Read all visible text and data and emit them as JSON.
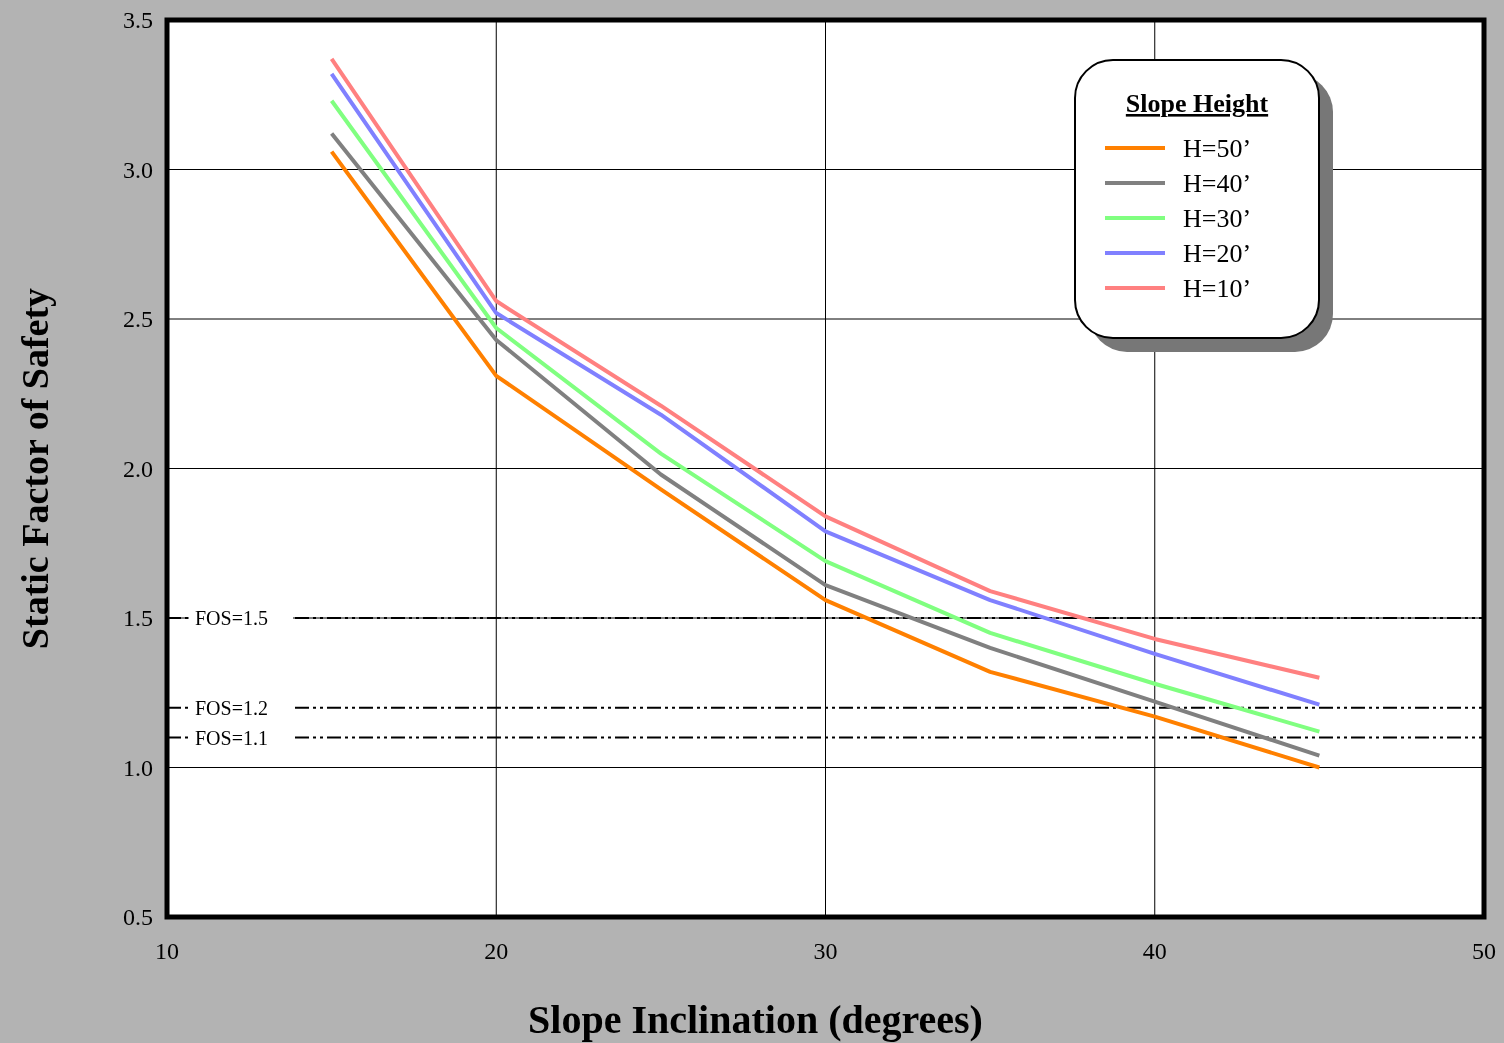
{
  "chart_data": {
    "type": "line",
    "xlabel": "Slope Inclination (degrees)",
    "ylabel": "Static Factor of Safety",
    "legend_title": "Slope Height",
    "x": [
      15,
      20,
      25,
      30,
      35,
      40,
      45
    ],
    "xlim": [
      10,
      50
    ],
    "xticks": [
      10,
      20,
      30,
      40,
      50
    ],
    "ylim": [
      0.5,
      3.5
    ],
    "yticks": [
      {
        "value": 0.5,
        "label": "0.5"
      },
      {
        "value": 1,
        "label": "1.0"
      },
      {
        "value": 1.5,
        "label": "1.5"
      },
      {
        "value": 2,
        "label": "2.0"
      },
      {
        "value": 2.5,
        "label": "2.5"
      },
      {
        "value": 3,
        "label": "3.0"
      },
      {
        "value": 3.5,
        "label": "3.5"
      }
    ],
    "grid": true,
    "legend": "top right",
    "line_style": "solid",
    "series": [
      {
        "name": "H=50’",
        "color": "#ff8000",
        "values": [
          3.06,
          2.31,
          1.93,
          1.56,
          1.32,
          1.17,
          1.0
        ]
      },
      {
        "name": "H=40’",
        "color": "#808080",
        "values": [
          3.12,
          2.43,
          1.98,
          1.61,
          1.4,
          1.22,
          1.04
        ]
      },
      {
        "name": "H=30’",
        "color": "#80ff80",
        "values": [
          3.23,
          2.47,
          2.05,
          1.69,
          1.45,
          1.28,
          1.12
        ]
      },
      {
        "name": "H=20’",
        "color": "#8080ff",
        "values": [
          3.32,
          2.52,
          2.18,
          1.79,
          1.56,
          1.38,
          1.21
        ]
      },
      {
        "name": "H=10’",
        "color": "#ff8080",
        "values": [
          3.37,
          2.56,
          2.21,
          1.84,
          1.59,
          1.43,
          1.3
        ]
      }
    ],
    "ref_lines": [
      {
        "axis": "y",
        "value": 1.5,
        "label": "FOS=1.5",
        "color": "#000000",
        "line_style": "dashed"
      },
      {
        "axis": "y",
        "value": 1.2,
        "label": "FOS=1.2",
        "color": "#000000",
        "line_style": "dashed"
      },
      {
        "axis": "y",
        "value": 1.1,
        "label": "FOS=1.1",
        "color": "#000000",
        "line_style": "dashed"
      }
    ]
  }
}
